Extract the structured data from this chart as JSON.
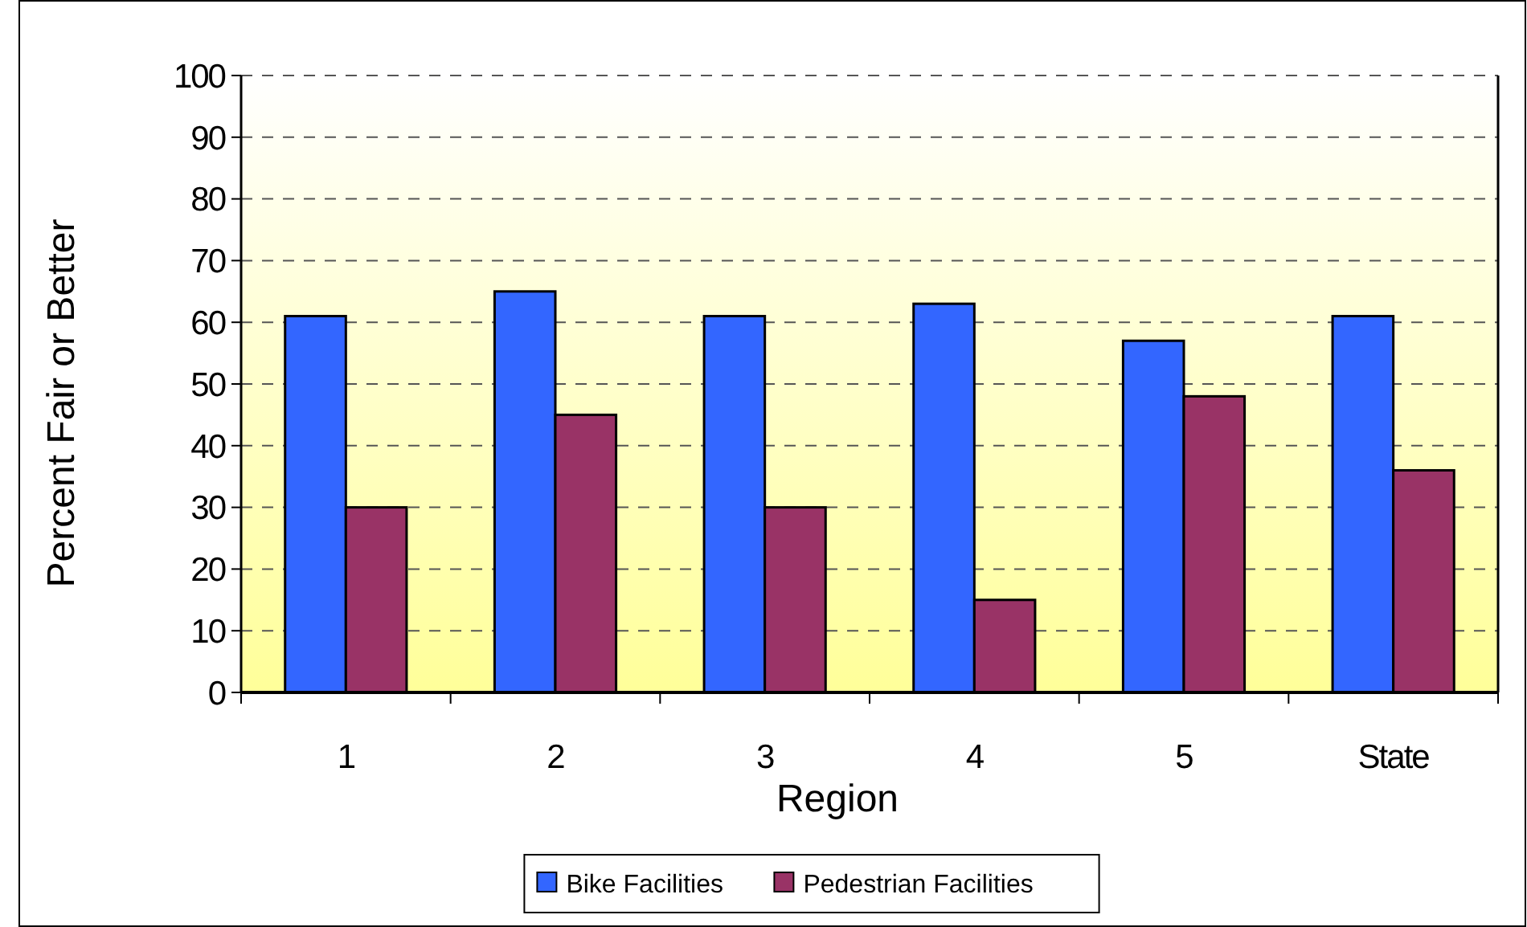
{
  "chart_data": {
    "type": "bar",
    "xlabel": "Region",
    "ylabel": "Percent Fair or Better",
    "categories": [
      "1",
      "2",
      "3",
      "4",
      "5",
      "State"
    ],
    "series": [
      {
        "name": "Bike Facilities",
        "color": "#3366ff",
        "values": [
          61,
          65,
          61,
          63,
          57,
          61
        ]
      },
      {
        "name": "Pedestrian Facilities",
        "color": "#993366",
        "values": [
          30,
          45,
          30,
          15,
          48,
          36
        ]
      }
    ],
    "ylim": [
      0,
      100
    ],
    "yticks": [
      0,
      10,
      20,
      30,
      40,
      50,
      60,
      70,
      80,
      90,
      100
    ],
    "grid": "y",
    "legend": "bottom"
  }
}
